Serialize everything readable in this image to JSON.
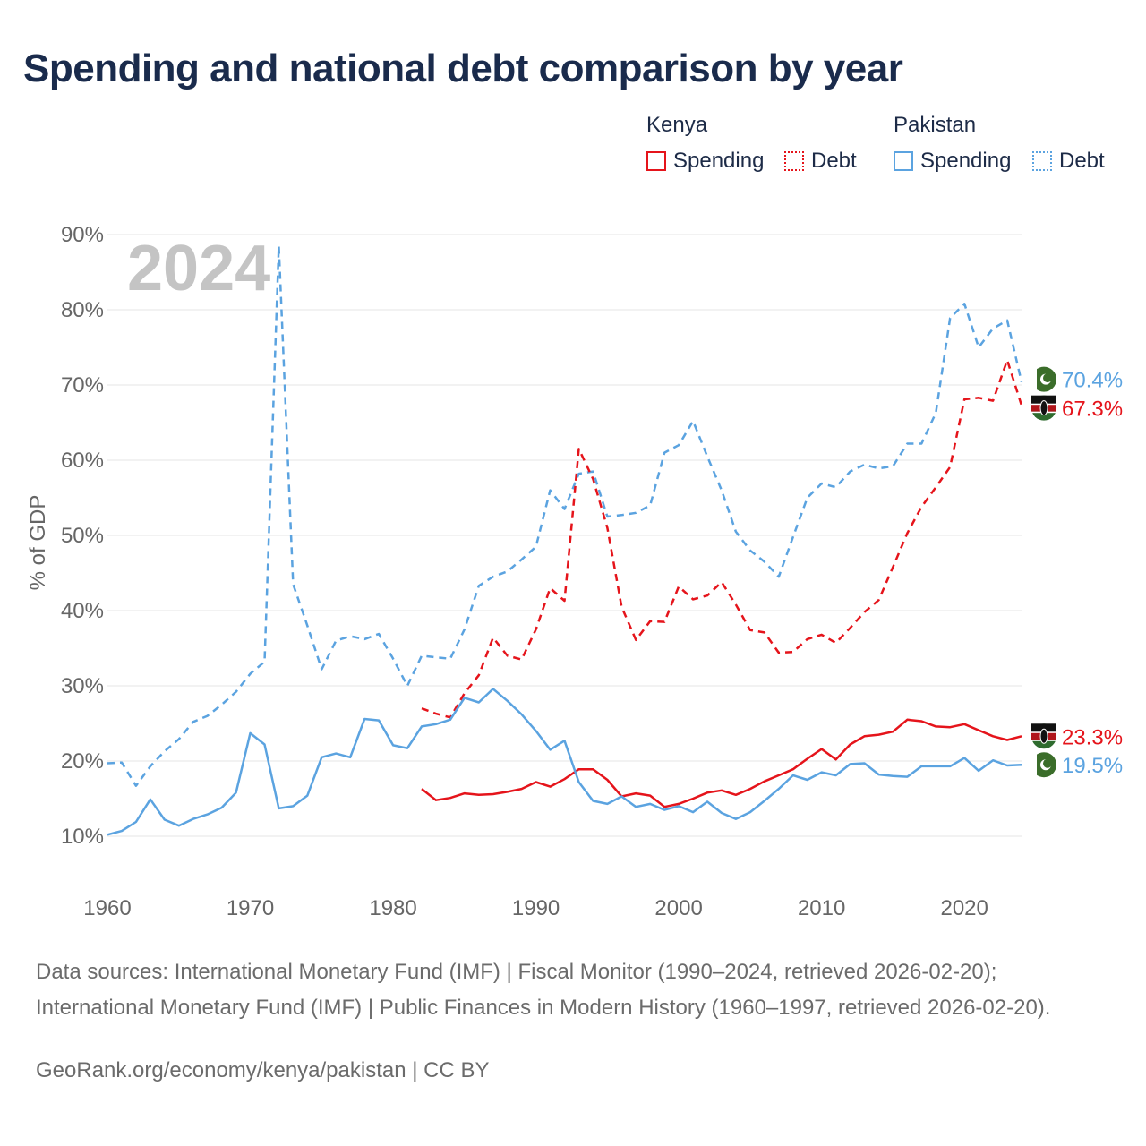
{
  "title": "Spending and national debt comparison by year",
  "legend": {
    "groups": [
      {
        "country": "Kenya",
        "items": [
          {
            "label": "Spending",
            "style": "solid",
            "color": "#e5141b"
          },
          {
            "label": "Debt",
            "style": "dotted",
            "color": "#e5141b"
          }
        ]
      },
      {
        "country": "Pakistan",
        "items": [
          {
            "label": "Spending",
            "style": "solid",
            "color": "#5ba3e0"
          },
          {
            "label": "Debt",
            "style": "dotted",
            "color": "#5ba3e0"
          }
        ]
      }
    ]
  },
  "year_watermark": "2024",
  "sources": "Data sources: International Monetary Fund (IMF) | Fiscal Monitor (1990–2024, retrieved 2026-02-20); International Monetary Fund (IMF) | Public Finances in Modern History (1960–1997, retrieved 2026-02-20).",
  "credit": "GeoRank.org/economy/kenya/pakistan | CC BY",
  "colors": {
    "kenya": "#e5141b",
    "pakistan": "#5ba3e0",
    "grid": "#e6e6e6",
    "axis_text": "#666666"
  },
  "chart_data": {
    "type": "line",
    "title": "Spending and national debt comparison by year",
    "xlabel": "",
    "ylabel": "% of GDP",
    "xlim": [
      1960,
      2024
    ],
    "ylim": [
      10,
      90
    ],
    "x_ticks": [
      1960,
      1970,
      1980,
      1990,
      2000,
      2010,
      2020
    ],
    "y_ticks": [
      10,
      20,
      30,
      40,
      50,
      60,
      70,
      80,
      90
    ],
    "y_tick_labels": [
      "10%",
      "20%",
      "30%",
      "40%",
      "50%",
      "60%",
      "70%",
      "80%",
      "90%"
    ],
    "grid": true,
    "series": [
      {
        "name": "Pakistan Debt",
        "country": "Pakistan",
        "measure": "Debt",
        "style": "dashed",
        "color": "#5ba3e0",
        "x": [
          1960,
          1961,
          1962,
          1963,
          1964,
          1965,
          1966,
          1967,
          1968,
          1969,
          1970,
          1971,
          1972,
          1973,
          1974,
          1975,
          1976,
          1977,
          1978,
          1979,
          1980,
          1981,
          1982,
          1983,
          1984,
          1985,
          1986,
          1987,
          1988,
          1989,
          1990,
          1991,
          1992,
          1993,
          1994,
          1995,
          1996,
          1997,
          1998,
          1999,
          2000,
          2001,
          2002,
          2003,
          2004,
          2005,
          2006,
          2007,
          2008,
          2009,
          2010,
          2011,
          2012,
          2013,
          2014,
          2015,
          2016,
          2017,
          2018,
          2019,
          2020,
          2021,
          2022,
          2023,
          2024
        ],
        "y": [
          19.7,
          19.8,
          16.7,
          19.3,
          21.3,
          22.9,
          25.2,
          26.0,
          27.5,
          29.2,
          31.6,
          33.2,
          88.5,
          43.5,
          38.0,
          32.2,
          36.0,
          36.6,
          36.2,
          36.9,
          33.6,
          30.0,
          34.0,
          33.8,
          33.6,
          37.5,
          43.3,
          44.5,
          45.2,
          46.8,
          48.5,
          56.0,
          53.5,
          58.2,
          58.5,
          52.5,
          52.7,
          53.0,
          54.0,
          61.0,
          62.0,
          65.2,
          60.5,
          56.0,
          50.5,
          48.0,
          46.5,
          44.5,
          49.8,
          55.0,
          56.9,
          56.4,
          58.5,
          59.4,
          58.9,
          59.2,
          62.2,
          62.2,
          66.3,
          78.9,
          80.8,
          75.0,
          77.5,
          78.6,
          70.4
        ],
        "end_label": "70.4%"
      },
      {
        "name": "Kenya Debt",
        "country": "Kenya",
        "measure": "Debt",
        "style": "dashed",
        "color": "#e5141b",
        "x": [
          1982,
          1983,
          1984,
          1985,
          1986,
          1987,
          1988,
          1989,
          1990,
          1991,
          1992,
          1993,
          1994,
          1995,
          1996,
          1997,
          1998,
          1999,
          2000,
          2001,
          2002,
          2003,
          2004,
          2005,
          2006,
          2007,
          2008,
          2009,
          2010,
          2011,
          2012,
          2013,
          2014,
          2015,
          2016,
          2017,
          2018,
          2019,
          2020,
          2021,
          2022,
          2023,
          2024
        ],
        "y": [
          27.0,
          26.3,
          25.8,
          29.0,
          31.4,
          36.4,
          34.0,
          33.5,
          37.5,
          43.0,
          41.3,
          61.5,
          57.5,
          51.0,
          40.5,
          36.1,
          38.6,
          38.5,
          43.2,
          41.5,
          42.0,
          43.8,
          40.8,
          37.4,
          37.1,
          34.4,
          34.5,
          36.2,
          36.8,
          35.7,
          37.7,
          39.8,
          41.4,
          45.8,
          50.3,
          53.8,
          56.4,
          59.1,
          68.1,
          68.3,
          67.9,
          73.3,
          67.3
        ],
        "end_label": "67.3%"
      },
      {
        "name": "Kenya Spending",
        "country": "Kenya",
        "measure": "Spending",
        "style": "solid",
        "color": "#e5141b",
        "x": [
          1982,
          1983,
          1984,
          1985,
          1986,
          1987,
          1988,
          1989,
          1990,
          1991,
          1992,
          1993,
          1994,
          1995,
          1996,
          1997,
          1998,
          1999,
          2000,
          2001,
          2002,
          2003,
          2004,
          2005,
          2006,
          2007,
          2008,
          2009,
          2010,
          2011,
          2012,
          2013,
          2014,
          2015,
          2016,
          2017,
          2018,
          2019,
          2020,
          2021,
          2022,
          2023,
          2024
        ],
        "y": [
          16.3,
          14.8,
          15.1,
          15.7,
          15.5,
          15.6,
          15.9,
          16.3,
          17.2,
          16.6,
          17.6,
          18.9,
          18.9,
          17.5,
          15.3,
          15.7,
          15.4,
          13.9,
          14.3,
          15.0,
          15.8,
          16.1,
          15.5,
          16.3,
          17.3,
          18.1,
          18.9,
          20.3,
          21.6,
          20.2,
          22.2,
          23.3,
          23.5,
          23.9,
          25.5,
          25.3,
          24.6,
          24.5,
          24.9,
          24.1,
          23.3,
          22.8,
          23.3
        ],
        "end_label": "23.3%"
      },
      {
        "name": "Pakistan Spending",
        "country": "Pakistan",
        "measure": "Spending",
        "style": "solid",
        "color": "#5ba3e0",
        "x": [
          1960,
          1961,
          1962,
          1963,
          1964,
          1965,
          1966,
          1967,
          1968,
          1969,
          1970,
          1971,
          1972,
          1973,
          1974,
          1975,
          1976,
          1977,
          1978,
          1979,
          1980,
          1981,
          1982,
          1983,
          1984,
          1985,
          1986,
          1987,
          1988,
          1989,
          1990,
          1991,
          1992,
          1993,
          1994,
          1995,
          1996,
          1997,
          1998,
          1999,
          2000,
          2001,
          2002,
          2003,
          2004,
          2005,
          2006,
          2007,
          2008,
          2009,
          2010,
          2011,
          2012,
          2013,
          2014,
          2015,
          2016,
          2017,
          2018,
          2019,
          2020,
          2021,
          2022,
          2023,
          2024
        ],
        "y": [
          10.2,
          10.7,
          11.9,
          14.9,
          12.2,
          11.4,
          12.3,
          12.9,
          13.8,
          15.8,
          23.7,
          22.2,
          13.7,
          14.0,
          15.4,
          20.5,
          21.0,
          20.5,
          25.6,
          25.4,
          22.1,
          21.7,
          24.6,
          24.9,
          25.5,
          28.4,
          27.8,
          29.6,
          28.0,
          26.2,
          24.0,
          21.5,
          22.7,
          17.2,
          14.7,
          14.3,
          15.3,
          13.9,
          14.3,
          13.5,
          14.0,
          13.2,
          14.6,
          13.1,
          12.3,
          13.2,
          14.7,
          16.3,
          18.1,
          17.5,
          18.5,
          18.1,
          19.6,
          19.7,
          18.2,
          18.0,
          17.9,
          19.3,
          19.3,
          19.3,
          20.4,
          18.7,
          20.1,
          19.4,
          19.5
        ],
        "end_label": "19.5%"
      }
    ]
  }
}
